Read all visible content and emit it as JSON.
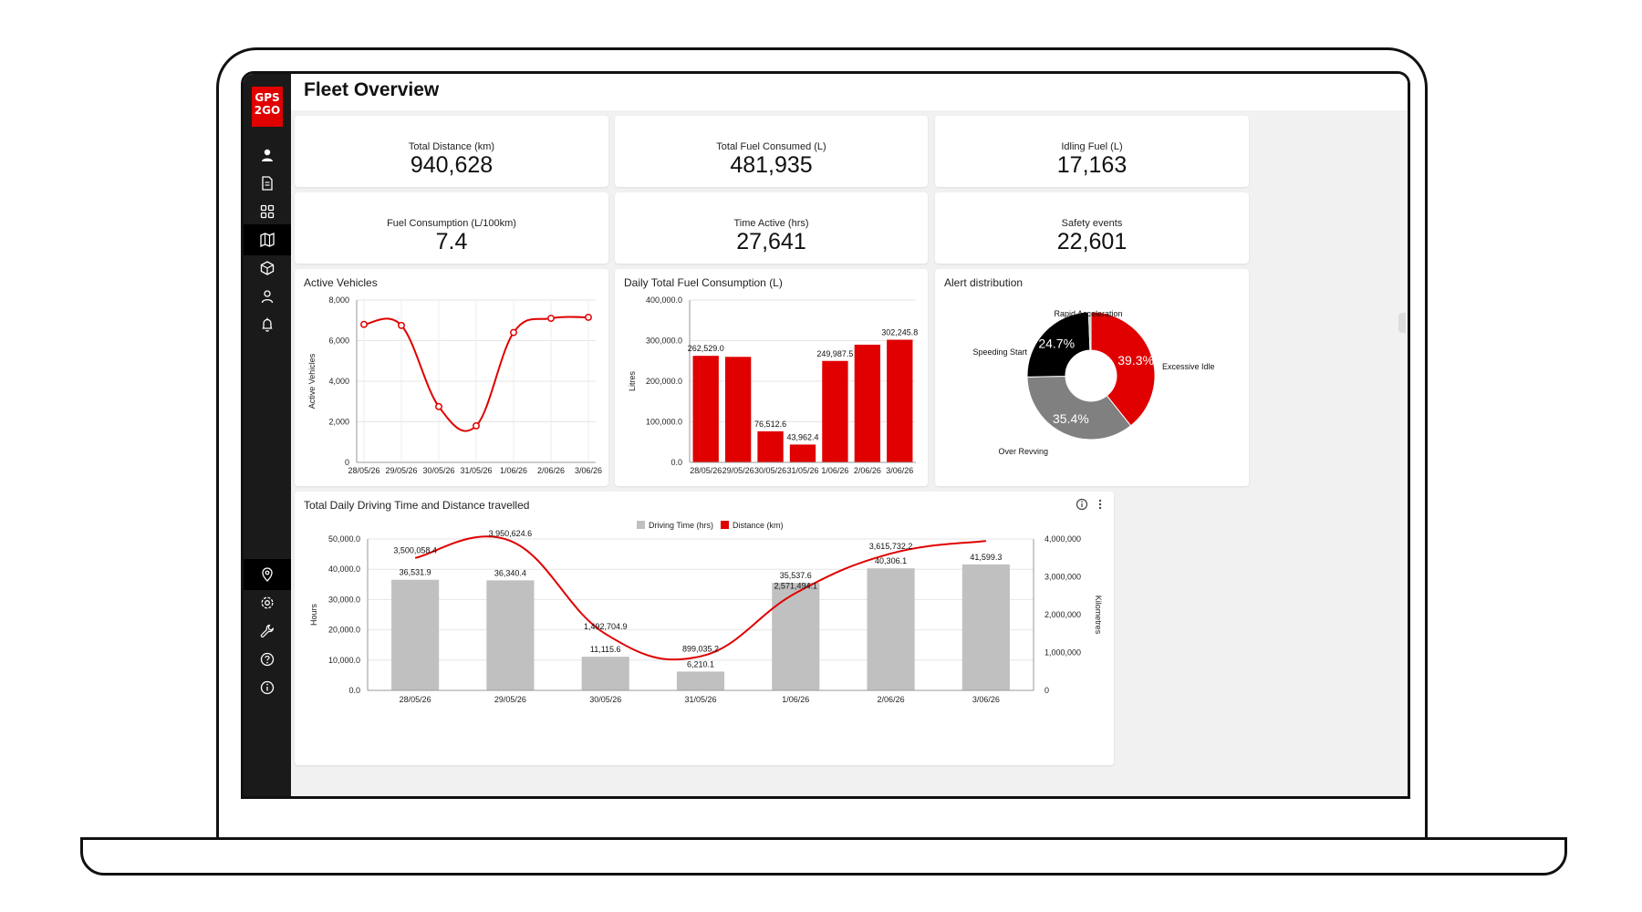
{
  "app": {
    "logo_text": "GPS 2GO",
    "page_title": "Fleet Overview"
  },
  "colors": {
    "brand_red": "#e00000",
    "sidebar": "#1a1a1a",
    "grey_bar": "#c0c0c0",
    "black": "#000000",
    "slice_grey": "#808080"
  },
  "sidebar": {
    "top_items": [
      {
        "icon": "user-icon",
        "active": false
      },
      {
        "icon": "document-icon",
        "active": false
      },
      {
        "icon": "dashboard-grid-icon",
        "active": false
      },
      {
        "icon": "map-icon",
        "active": true
      },
      {
        "icon": "package-icon",
        "active": false
      },
      {
        "icon": "person-outline-icon",
        "active": false
      },
      {
        "icon": "bell-icon",
        "active": false
      }
    ],
    "bottom_items": [
      {
        "icon": "location-pin-icon",
        "active": true
      },
      {
        "icon": "settings-gear-icon",
        "active": false
      },
      {
        "icon": "wrench-icon",
        "active": false
      },
      {
        "icon": "help-icon",
        "active": false
      },
      {
        "icon": "info-icon",
        "active": false
      }
    ]
  },
  "kpis": [
    {
      "label": "Total Distance (km)",
      "value": "940,628"
    },
    {
      "label": "Total Fuel Consumed (L)",
      "value": "481,935"
    },
    {
      "label": "Idling Fuel (L)",
      "value": "17,163"
    },
    {
      "label": "Fuel Consumption (L/100km)",
      "value": "7.4"
    },
    {
      "label": "Time Active (hrs)",
      "value": "27,641"
    },
    {
      "label": "Safety events",
      "value": "22,601"
    }
  ],
  "chart_data": [
    {
      "type": "line",
      "title": "Active Vehicles",
      "ylabel": "Active Vehicles",
      "categories": [
        "28/05/26",
        "29/05/26",
        "30/05/26",
        "31/05/26",
        "1/06/26",
        "2/06/26",
        "3/06/26"
      ],
      "values": [
        6800,
        6750,
        2750,
        1800,
        6400,
        7100,
        7150
      ],
      "ylim": [
        0,
        8000
      ],
      "yticks": [
        "0",
        "2,000",
        "4,000",
        "6,000",
        "8,000"
      ]
    },
    {
      "type": "bar",
      "title": "Daily Total Fuel Consumption (L)",
      "ylabel": "Litres",
      "categories": [
        "28/05/26",
        "29/05/26",
        "30/05/26",
        "31/05/26",
        "1/06/26",
        "2/06/26",
        "3/06/26"
      ],
      "values": [
        262529.0,
        260000,
        76512.6,
        43962.4,
        249987.5,
        290000,
        302245.8
      ],
      "data_labels": [
        "262,529.0",
        "",
        "76,512.6",
        "43,962.4",
        "249,987.5",
        "",
        "302,245.8"
      ],
      "ylim": [
        0,
        400000
      ],
      "yticks": [
        "0.0",
        "100,000.0",
        "200,000.0",
        "300,000.0",
        "400,000.0"
      ]
    },
    {
      "type": "pie",
      "title": "Alert distribution",
      "slices": [
        {
          "label": "Excessive Idle",
          "value": 39.3,
          "display": "39.3%",
          "color": "#e00000"
        },
        {
          "label": "Over Revving",
          "value": 35.4,
          "display": "35.4%",
          "color": "#808080"
        },
        {
          "label": "Speeding Start",
          "value": 24.7,
          "display": "24.7%",
          "color": "#000000"
        },
        {
          "label": "Rapid Acceleration",
          "value": 0.6,
          "display": "",
          "color": "#bbbbbb"
        }
      ]
    },
    {
      "type": "bar",
      "title": "Total Daily Driving Time and Distance travelled",
      "ylabel": "Hours",
      "y2label": "Kilometres",
      "legend": [
        "Driving Time (hrs)",
        "Distance (km)"
      ],
      "legend_position": "top",
      "categories": [
        "28/05/26",
        "29/05/26",
        "30/05/26",
        "31/05/26",
        "1/06/26",
        "2/06/26",
        "3/06/26"
      ],
      "series": [
        {
          "name": "Driving Time (hrs)",
          "type": "bar",
          "values": [
            36531.9,
            36340.4,
            11115.6,
            6210.1,
            35537.6,
            40306.1,
            41599.3
          ],
          "labels": [
            "36,531.9",
            "36,340.4",
            "11,115.6",
            "6,210.1",
            "35,537.6",
            "40,306.1",
            "41,599.3"
          ]
        },
        {
          "name": "Distance (km)",
          "type": "line",
          "values": [
            3500058.4,
            3950624.6,
            1492704.9,
            899035.2,
            2571494.1,
            3615732.2,
            3950000
          ],
          "labels": [
            "3,500,058.4",
            "3,950,624.6",
            "1,492,704.9",
            "899,035.2",
            "2,571,494.1",
            "3,615,732.2",
            ""
          ]
        }
      ],
      "ylim": [
        0,
        50000
      ],
      "yticks": [
        "0.0",
        "10,000.0",
        "20,000.0",
        "30,000.0",
        "40,000.0",
        "50,000.0"
      ],
      "y2lim": [
        0,
        4000000
      ],
      "y2ticks": [
        "0",
        "1,000,000",
        "2,000,000",
        "3,000,000",
        "4,000,000"
      ]
    }
  ]
}
